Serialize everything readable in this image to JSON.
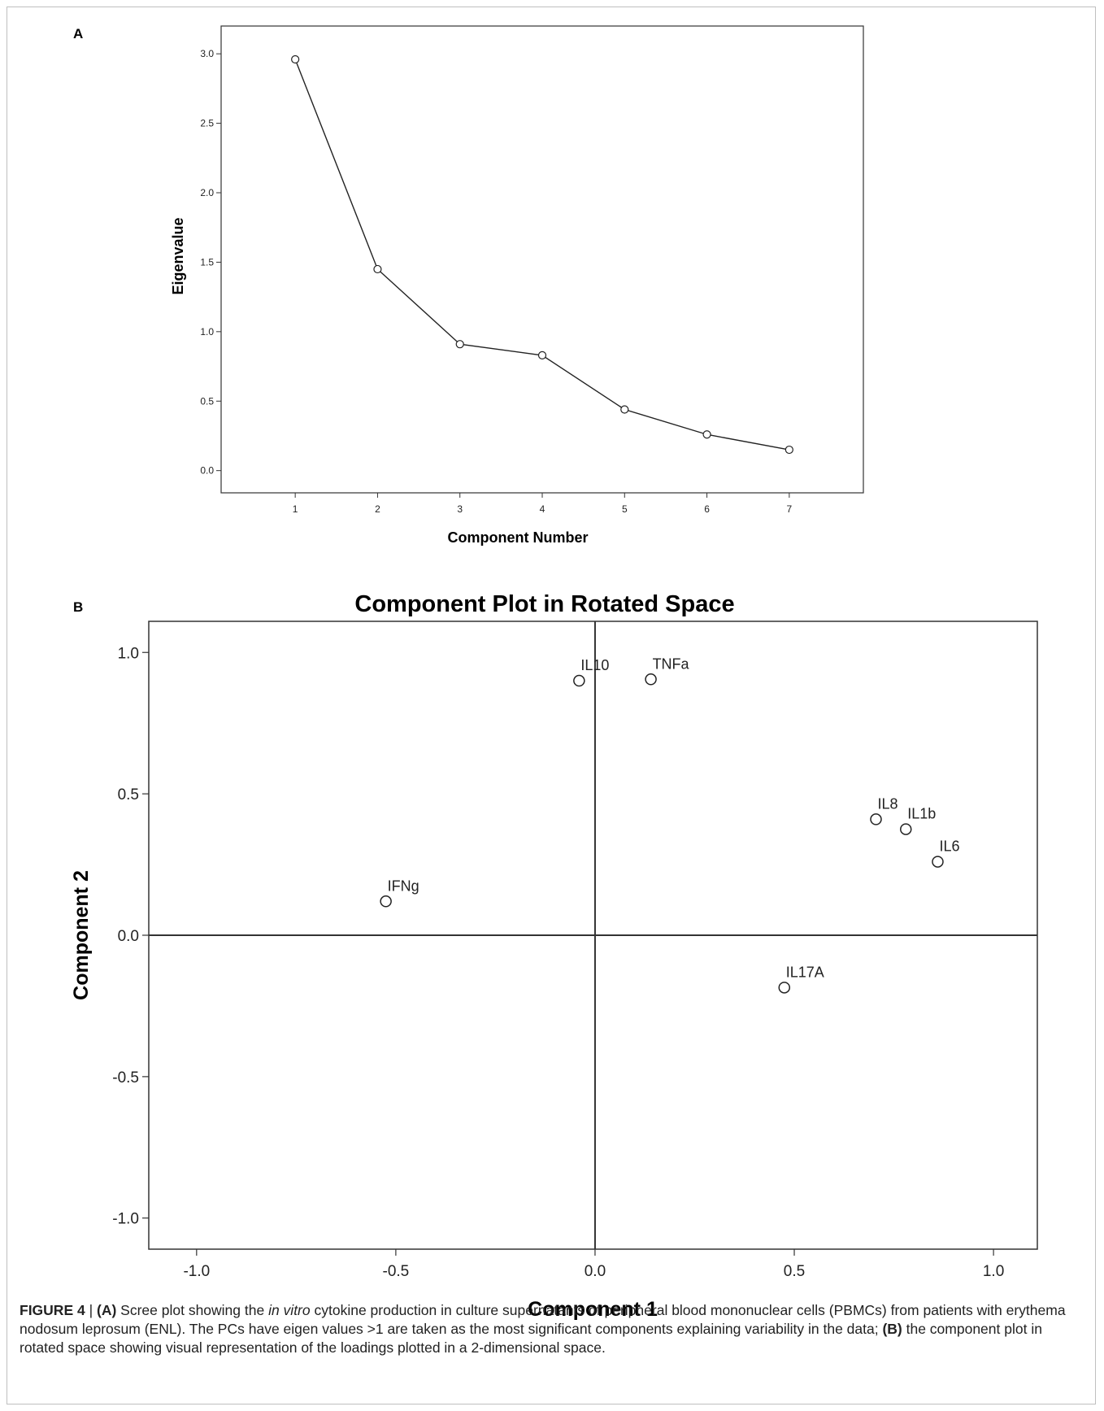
{
  "panels": {
    "a_label": "A",
    "b_label": "B"
  },
  "chart_data": [
    {
      "type": "line",
      "title": "",
      "xlabel": "Component Number",
      "ylabel": "Eigenvalue",
      "x": [
        1,
        2,
        3,
        4,
        5,
        6,
        7
      ],
      "xticks": [
        "1",
        "2",
        "3",
        "4",
        "5",
        "6",
        "7"
      ],
      "yticks": [
        "0.0",
        "0.5",
        "1.0",
        "1.5",
        "2.0",
        "2.5",
        "3.0"
      ],
      "series": [
        {
          "values": [
            2.96,
            1.45,
            0.91,
            0.83,
            0.44,
            0.26,
            0.15
          ]
        }
      ],
      "xlim": [
        0.1,
        7.9
      ],
      "ylim": [
        -0.16,
        3.2
      ],
      "marker": "open-circle",
      "grid": false
    },
    {
      "type": "scatter",
      "title": "Component Plot in Rotated Space",
      "xlabel": "Component 1",
      "ylabel": "Component 2",
      "xticks": [
        "-1.0",
        "-0.5",
        "0.0",
        "0.5",
        "1.0"
      ],
      "yticks": [
        "1.0",
        "0.5",
        "0.0",
        "-0.5",
        "-1.0"
      ],
      "xlim": [
        -1.12,
        1.11
      ],
      "ylim": [
        -1.11,
        1.11
      ],
      "marker": "open-circle",
      "grid": false,
      "points": [
        {
          "label": "IL10",
          "x": -0.04,
          "y": 0.9
        },
        {
          "label": "TNFa",
          "x": 0.14,
          "y": 0.905
        },
        {
          "label": "IL8",
          "x": 0.705,
          "y": 0.41
        },
        {
          "label": "IL1b",
          "x": 0.78,
          "y": 0.375
        },
        {
          "label": "IL6",
          "x": 0.86,
          "y": 0.26
        },
        {
          "label": "IFNg",
          "x": -0.525,
          "y": 0.12
        },
        {
          "label": "IL17A",
          "x": 0.475,
          "y": -0.185
        }
      ]
    }
  ],
  "caption": {
    "figure_label": "FIGURE 4",
    "separator": " | ",
    "a_marker": "(A)",
    "text_1": " Scree plot showing the ",
    "italic": "in vitro",
    "text_2": " cytokine production in culture supernatants of peripheral blood mononuclear cells (PBMCs) from patients with erythema nodosum leprosum (ENL). The PCs have eigen values >1 are taken as the most significant components explaining variability in the data; ",
    "b_marker": "(B)",
    "text_3": " the component plot in rotated space showing visual representation of the loadings plotted in a 2-dimensional space."
  }
}
